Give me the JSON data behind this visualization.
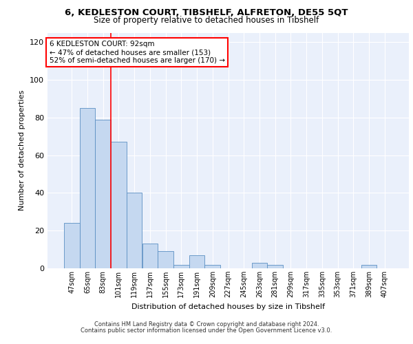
{
  "title": "6, KEDLESTON COURT, TIBSHELF, ALFRETON, DE55 5QT",
  "subtitle": "Size of property relative to detached houses in Tibshelf",
  "xlabel": "Distribution of detached houses by size in Tibshelf",
  "ylabel": "Number of detached properties",
  "categories": [
    "47sqm",
    "65sqm",
    "83sqm",
    "101sqm",
    "119sqm",
    "137sqm",
    "155sqm",
    "173sqm",
    "191sqm",
    "209sqm",
    "227sqm",
    "245sqm",
    "263sqm",
    "281sqm",
    "299sqm",
    "317sqm",
    "335sqm",
    "353sqm",
    "371sqm",
    "389sqm",
    "407sqm"
  ],
  "values": [
    24,
    85,
    79,
    67,
    40,
    13,
    9,
    2,
    7,
    2,
    0,
    0,
    3,
    2,
    0,
    0,
    0,
    0,
    0,
    2,
    0
  ],
  "bar_color": "#c5d8f0",
  "bar_edge_color": "#5a8fc2",
  "vline_x": 2.5,
  "vline_color": "red",
  "annotation_text": "6 KEDLESTON COURT: 92sqm\n← 47% of detached houses are smaller (153)\n52% of semi-detached houses are larger (170) →",
  "annotation_box_color": "white",
  "annotation_box_edge": "red",
  "ylim": [
    0,
    125
  ],
  "yticks": [
    0,
    20,
    40,
    60,
    80,
    100,
    120
  ],
  "background_color": "#eaf0fb",
  "footer_line1": "Contains HM Land Registry data © Crown copyright and database right 2024.",
  "footer_line2": "Contains public sector information licensed under the Open Government Licence v3.0."
}
